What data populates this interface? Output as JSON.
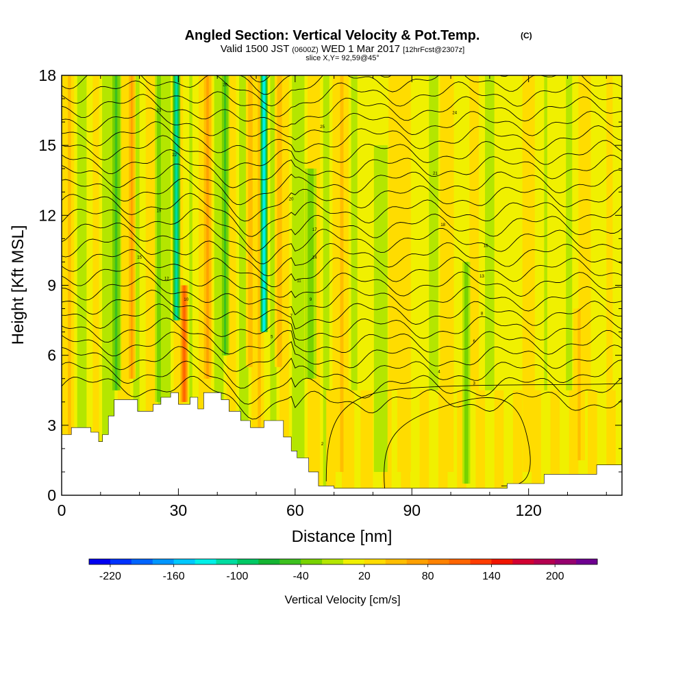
{
  "chart_data": {
    "type": "heatmap",
    "title": "Angled Section: Vertical Velocity & Pot.Temp.",
    "title_unit": "(C)",
    "subtitle_parts": [
      "Valid 1500 JST",
      "(0600Z)",
      "WED 1 Mar 2017",
      "[12hrFcst@2307z]"
    ],
    "subtitle2": "slice X,Y= 92,59@45°",
    "xlabel": "Distance [nm]",
    "ylabel": "Height [Kft MSL]",
    "xlim": [
      0,
      144
    ],
    "ylim": [
      0,
      18
    ],
    "xticks": [
      "0",
      "30",
      "60",
      "90",
      "120"
    ],
    "xtick_values": [
      0,
      30,
      60,
      90,
      120
    ],
    "yticks": [
      "0",
      "3",
      "6",
      "9",
      "12",
      "15",
      "18"
    ],
    "ytick_values": [
      0,
      3,
      6,
      9,
      12,
      15,
      18
    ],
    "colorbar": {
      "label": "Vertical Velocity [cm/s]",
      "min": -240,
      "max": 240,
      "step": 20,
      "tick_labels": [
        "-220",
        "-160",
        "-100",
        "-40",
        "20",
        "80",
        "140",
        "200"
      ],
      "tick_values": [
        -220,
        -160,
        -100,
        -40,
        20,
        80,
        140,
        200
      ],
      "colors": [
        "#0000f0",
        "#0032ff",
        "#0064ff",
        "#0096ff",
        "#00c8ff",
        "#00f0e8",
        "#00dca0",
        "#00c864",
        "#14b432",
        "#3cc01e",
        "#78d200",
        "#b4e600",
        "#f0f000",
        "#ffdc00",
        "#ffbe00",
        "#ffa000",
        "#ff8200",
        "#ff6400",
        "#ff3c00",
        "#f01400",
        "#d20032",
        "#b40050",
        "#96006e",
        "#6e0090"
      ]
    },
    "terrain": [
      {
        "x": 0,
        "h": 2.6
      },
      {
        "x": 2.5,
        "h": 2.9
      },
      {
        "x": 7.5,
        "h": 2.7
      },
      {
        "x": 9.5,
        "h": 2.3
      },
      {
        "x": 10.5,
        "h": 2.6
      },
      {
        "x": 12,
        "h": 3.4
      },
      {
        "x": 13.5,
        "h": 4.1
      },
      {
        "x": 19.5,
        "h": 3.6
      },
      {
        "x": 23.5,
        "h": 3.9
      },
      {
        "x": 25.5,
        "h": 4.2
      },
      {
        "x": 28,
        "h": 4.4
      },
      {
        "x": 30,
        "h": 3.9
      },
      {
        "x": 33,
        "h": 4.2
      },
      {
        "x": 35,
        "h": 3.7
      },
      {
        "x": 36.5,
        "h": 4.4
      },
      {
        "x": 41,
        "h": 4.1
      },
      {
        "x": 43,
        "h": 3.6
      },
      {
        "x": 46,
        "h": 3.2
      },
      {
        "x": 48.5,
        "h": 2.9
      },
      {
        "x": 52,
        "h": 3.2
      },
      {
        "x": 57,
        "h": 2.5
      },
      {
        "x": 59,
        "h": 1.9
      },
      {
        "x": 60.5,
        "h": 1.6
      },
      {
        "x": 63.5,
        "h": 1.0
      },
      {
        "x": 66,
        "h": 0.4
      },
      {
        "x": 70,
        "h": 0.3
      },
      {
        "x": 114.5,
        "h": 0.5
      },
      {
        "x": 124,
        "h": 0.9
      },
      {
        "x": 137.5,
        "h": 1.3
      },
      {
        "x": 144,
        "h": 1.3
      }
    ],
    "anomalies": [
      {
        "x": 14,
        "w": 2.6,
        "v": -50,
        "top": 18,
        "bottom": 4.5
      },
      {
        "x": 18,
        "w": 2.0,
        "v": 60,
        "top": 18,
        "bottom": 5.0
      },
      {
        "x": 25,
        "w": 2.0,
        "v": -30,
        "top": 18,
        "bottom": 4.0
      },
      {
        "x": 29.5,
        "w": 2.0,
        "v": -120,
        "top": 18,
        "bottom": 7.5
      },
      {
        "x": 31.5,
        "w": 2.0,
        "v": 100,
        "top": 9.0,
        "bottom": 4.0
      },
      {
        "x": 37.5,
        "w": 2.5,
        "v": 60,
        "top": 18,
        "bottom": 5.0
      },
      {
        "x": 42,
        "w": 2.2,
        "v": -50,
        "top": 18,
        "bottom": 6.0
      },
      {
        "x": 48.5,
        "w": 2.3,
        "v": 50,
        "top": 18,
        "bottom": 5.5
      },
      {
        "x": 52,
        "w": 2.0,
        "v": -140,
        "top": 18,
        "bottom": 7.0
      },
      {
        "x": 56,
        "w": 2.5,
        "v": 50,
        "top": 18,
        "bottom": 5.5
      },
      {
        "x": 64,
        "w": 3.0,
        "v": -30,
        "top": 14,
        "bottom": 5.0
      },
      {
        "x": 72,
        "w": 3.5,
        "v": 40,
        "top": 18,
        "bottom": 1.0
      },
      {
        "x": 82,
        "w": 3.5,
        "v": -20,
        "top": 15,
        "bottom": 1.0
      },
      {
        "x": 88,
        "w": 3.5,
        "v": 30,
        "top": 18,
        "bottom": 1.0
      },
      {
        "x": 99,
        "w": 3.5,
        "v": 30,
        "top": 18,
        "bottom": 1.0
      },
      {
        "x": 104,
        "w": 2.0,
        "v": -30,
        "top": 10,
        "bottom": 0.5
      },
      {
        "x": 120,
        "w": 3.0,
        "v": 30,
        "top": 14,
        "bottom": 1.0
      },
      {
        "x": 133,
        "w": 3.0,
        "v": 40,
        "top": 8,
        "bottom": 1.5
      }
    ],
    "contour_labels": [
      {
        "x": 42,
        "y": 17.6,
        "text": "26"
      },
      {
        "x": 67,
        "y": 15.8,
        "text": "25"
      },
      {
        "x": 101,
        "y": 16.4,
        "text": "24"
      },
      {
        "x": 25,
        "y": 16.5,
        "text": "23"
      },
      {
        "x": 29,
        "y": 14.6,
        "text": "22"
      },
      {
        "x": 96,
        "y": 13.8,
        "text": "21"
      },
      {
        "x": 59,
        "y": 12.7,
        "text": "20"
      },
      {
        "x": 25,
        "y": 12.2,
        "text": "19"
      },
      {
        "x": 98,
        "y": 11.6,
        "text": "18"
      },
      {
        "x": 65,
        "y": 11.4,
        "text": "17"
      },
      {
        "x": 109,
        "y": 10.7,
        "text": "16"
      },
      {
        "x": 20,
        "y": 10.2,
        "text": "15"
      },
      {
        "x": 65,
        "y": 10.2,
        "text": "14"
      },
      {
        "x": 108,
        "y": 9.4,
        "text": "13"
      },
      {
        "x": 27,
        "y": 9.3,
        "text": "12"
      },
      {
        "x": 61,
        "y": 9.2,
        "text": "11"
      },
      {
        "x": 32,
        "y": 8.4,
        "text": "10"
      },
      {
        "x": 64,
        "y": 8.4,
        "text": "9"
      },
      {
        "x": 108,
        "y": 7.8,
        "text": "8"
      },
      {
        "x": 59,
        "y": 7.7,
        "text": "7"
      },
      {
        "x": 106,
        "y": 6.6,
        "text": "6"
      },
      {
        "x": 54,
        "y": 6.8,
        "text": "5"
      },
      {
        "x": 97,
        "y": 5.3,
        "text": "4"
      },
      {
        "x": 106,
        "y": 4.8,
        "text": "3"
      },
      {
        "x": 67,
        "y": 2.2,
        "text": "2"
      }
    ]
  }
}
